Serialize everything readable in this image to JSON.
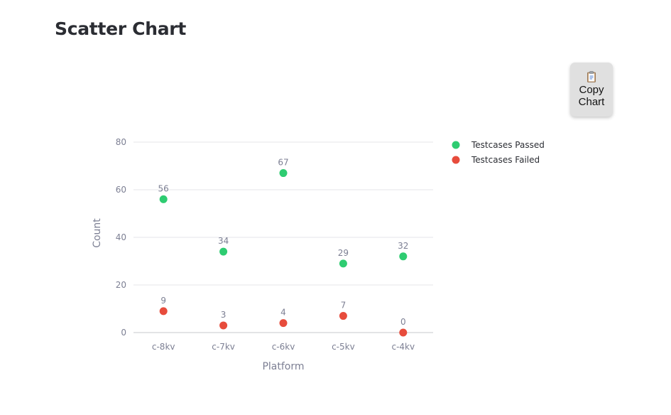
{
  "page": {
    "title": "Scatter Chart"
  },
  "copy_button": {
    "label": "Copy Chart",
    "icon": "clipboard-icon"
  },
  "chart_data": {
    "type": "scatter",
    "categories": [
      "c-8kv",
      "c-7kv",
      "c-6kv",
      "c-5kv",
      "c-4kv"
    ],
    "series": [
      {
        "name": "Testcases Passed",
        "color": "#2ecc71",
        "values": [
          56,
          34,
          67,
          29,
          32
        ]
      },
      {
        "name": "Testcases Failed",
        "color": "#e74c3c",
        "values": [
          9,
          3,
          4,
          7,
          0
        ]
      }
    ],
    "xlabel": "Platform",
    "ylabel": "Count",
    "ylim": [
      0,
      80
    ],
    "yticks": [
      0,
      20,
      40,
      60,
      80
    ],
    "grid": true,
    "legend_position": "right",
    "data_labels": true
  }
}
